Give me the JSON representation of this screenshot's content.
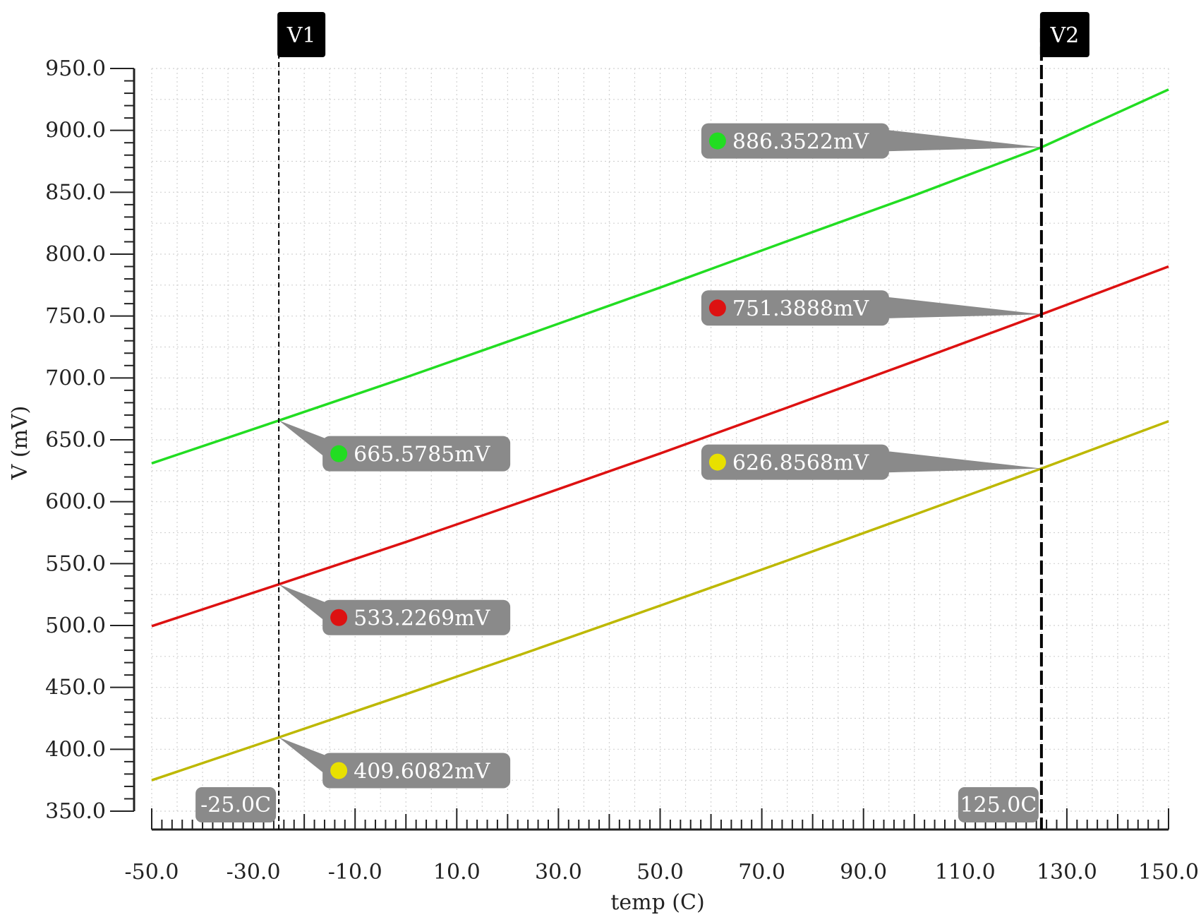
{
  "chart_data": {
    "type": "line",
    "xlabel": "temp (C)",
    "ylabel": "V (mV)",
    "xlim": [
      -50,
      150
    ],
    "ylim": [
      350,
      950
    ],
    "x_ticks": [
      "-50.0",
      "-30.0",
      "-10.0",
      "10.0",
      "30.0",
      "50.0",
      "70.0",
      "90.0",
      "110.0",
      "130.0",
      "150.0"
    ],
    "y_ticks": [
      "350.0",
      "400.0",
      "450.0",
      "500.0",
      "550.0",
      "600.0",
      "650.0",
      "700.0",
      "750.0",
      "800.0",
      "850.0",
      "900.0",
      "950.0"
    ],
    "grid": true,
    "series": [
      {
        "color": "#22dd22",
        "x": [
          -50,
          -25,
          0,
          25,
          50,
          75,
          100,
          125,
          150
        ],
        "y": [
          631,
          665.5785,
          700.5,
          736.5,
          773,
          810.5,
          847.5,
          886.3522,
          933
        ]
      },
      {
        "color": "#dd1111",
        "x": [
          -50,
          -25,
          0,
          25,
          50,
          75,
          100,
          125,
          150
        ],
        "y": [
          499.5,
          533.2269,
          567.5,
          603,
          639,
          676,
          713.5,
          751.3888,
          790
        ]
      },
      {
        "color": "#bdb800",
        "x": [
          -50,
          -25,
          0,
          25,
          50,
          75,
          100,
          125,
          150
        ],
        "y": [
          375,
          409.6082,
          444.5,
          480,
          516,
          552.5,
          589.5,
          626.8568,
          665
        ]
      }
    ],
    "markers": [
      {
        "name": "V1",
        "x": -25,
        "x_label": "-25.0C"
      },
      {
        "name": "V2",
        "x": 125,
        "x_label": "125.0C"
      }
    ],
    "annotations": [
      {
        "text": "665.5785mV",
        "x": -25,
        "y": 665.5785,
        "color": "#22dd22",
        "side": "right"
      },
      {
        "text": "533.2269mV",
        "x": -25,
        "y": 533.2269,
        "color": "#dd1111",
        "side": "right"
      },
      {
        "text": "409.6082mV",
        "x": -25,
        "y": 409.6082,
        "color": "#e8e000",
        "side": "right"
      },
      {
        "text": "886.3522mV",
        "x": 125,
        "y": 886.3522,
        "color": "#22dd22",
        "side": "left"
      },
      {
        "text": "751.3888mV",
        "x": 125,
        "y": 751.3888,
        "color": "#dd1111",
        "side": "left"
      },
      {
        "text": "626.8568mV",
        "x": 125,
        "y": 626.8568,
        "color": "#e8e000",
        "side": "left"
      }
    ]
  }
}
